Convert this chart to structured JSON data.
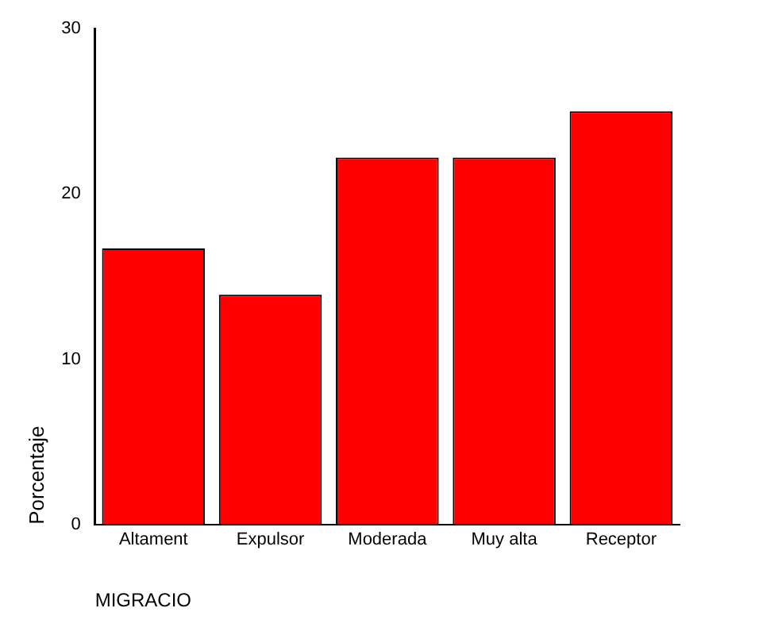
{
  "chart_data": {
    "type": "bar",
    "xlabel": "MIGRACIO",
    "ylabel": "Porcentaje",
    "categories": [
      "Altament",
      "Expulsor",
      "Moderada",
      "Muy alta",
      "Receptor"
    ],
    "values": [
      16.7,
      13.9,
      22.2,
      22.2,
      25.0
    ],
    "color": "#ff0000",
    "ylim": [
      0,
      30
    ],
    "yticks": [
      0,
      10,
      20,
      30
    ],
    "grid": false,
    "legend": false
  }
}
